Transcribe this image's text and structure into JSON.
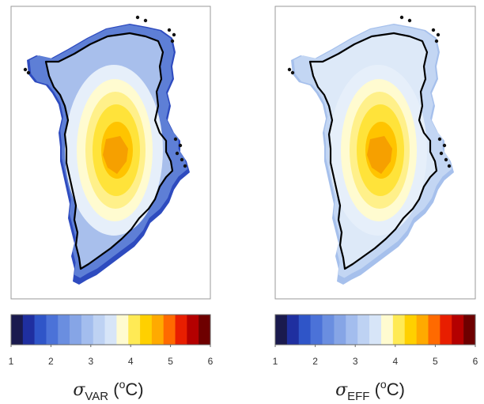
{
  "figure": {
    "background": "#ffffff"
  },
  "chart_data": [
    {
      "type": "heatmap",
      "panel": "left",
      "title": "",
      "colorbar": {
        "ticks": [
          1,
          2,
          3,
          4,
          5,
          6
        ],
        "range": [
          1,
          6
        ],
        "colors": [
          "#1a1a4e",
          "#1f2fa0",
          "#2f55c8",
          "#4b72d8",
          "#6a8ee0",
          "#86a5e6",
          "#a3bdee",
          "#bed2f3",
          "#d7e5f8",
          "#fffbd0",
          "#ffea55",
          "#ffd000",
          "#ffaa00",
          "#ff6a00",
          "#e81e00",
          "#b40000",
          "#6e0000"
        ],
        "label_symbol": "σ",
        "label_subscript": "VAR",
        "label_unit_open": " (",
        "label_unit_sup": "o",
        "label_unit_close": "C)"
      },
      "map": {
        "peak_value": 4.6,
        "field": "high-variability-margins"
      }
    },
    {
      "type": "heatmap",
      "panel": "right",
      "title": "",
      "colorbar": {
        "ticks": [
          1,
          2,
          3,
          4,
          5,
          6
        ],
        "range": [
          1,
          6
        ],
        "colors": [
          "#1a1a4e",
          "#1f2fa0",
          "#2f55c8",
          "#4b72d8",
          "#6a8ee0",
          "#86a5e6",
          "#a3bdee",
          "#bed2f3",
          "#d7e5f8",
          "#fffbd0",
          "#ffea55",
          "#ffd000",
          "#ffaa00",
          "#ff6a00",
          "#e81e00",
          "#b40000",
          "#6e0000"
        ],
        "label_symbol": "σ",
        "label_subscript": "EFF",
        "label_unit_open": " (",
        "label_unit_sup": "o",
        "label_unit_close": "C)"
      },
      "map": {
        "peak_value": 4.6,
        "field": "uniform-light-margins"
      }
    }
  ]
}
